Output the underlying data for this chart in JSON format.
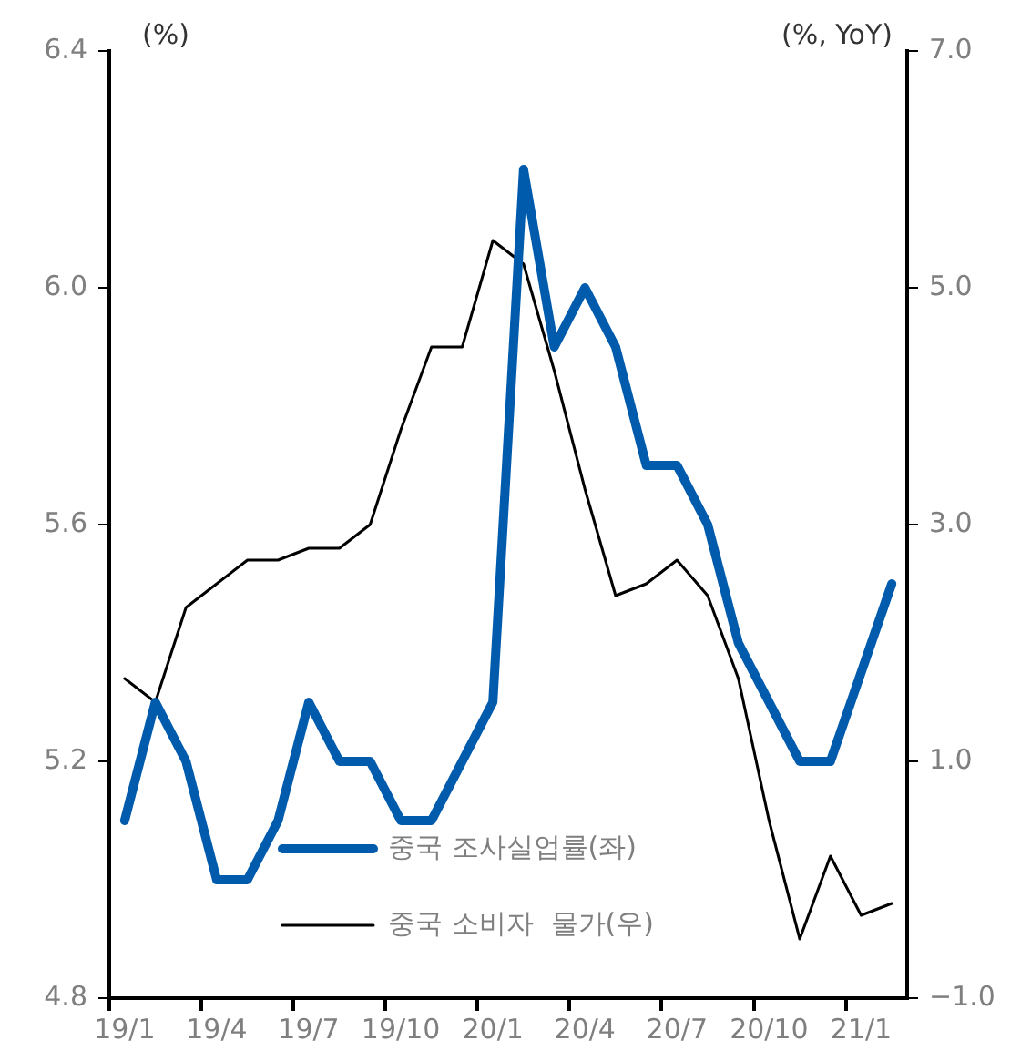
{
  "chart_data": {
    "type": "line",
    "ylabel": "(%)",
    "y2label": "(%, YoY)",
    "categories": [
      "19/1",
      null,
      null,
      "19/4",
      null,
      null,
      "19/7",
      null,
      null,
      "19/10",
      null,
      null,
      "20/1",
      null,
      null,
      "20/4",
      null,
      null,
      "20/7",
      null,
      null,
      "20/10",
      null,
      null,
      "21/1",
      null
    ],
    "series": [
      {
        "name": "중국 조사실업률(좌)",
        "color": "#005bac",
        "values": [
          5.1,
          5.3,
          5.2,
          5.0,
          5.0,
          5.1,
          5.3,
          5.2,
          5.2,
          5.1,
          5.1,
          5.2,
          5.3,
          6.2,
          5.9,
          6.0,
          5.9,
          5.7,
          5.7,
          5.6,
          5.4,
          5.3,
          5.2,
          5.2,
          null,
          5.5
        ]
      },
      {
        "name": "중국 소비자  물가(우)",
        "color": "#000000",
        "axis": "y2",
        "values": [
          1.7,
          1.5,
          2.3,
          2.5,
          2.7,
          2.7,
          2.8,
          2.8,
          3.0,
          3.8,
          4.5,
          4.5,
          5.4,
          5.2,
          4.3,
          3.3,
          2.4,
          2.5,
          2.7,
          2.4,
          1.7,
          0.5,
          -0.5,
          0.2,
          -0.3,
          -0.2
        ]
      }
    ],
    "ylim": [
      4.8,
      6.4
    ],
    "yticks": [
      {
        "value": 4.8,
        "label": "4.8"
      },
      {
        "value": 5.2,
        "label": "5.2"
      },
      {
        "value": 5.6,
        "label": "5.6"
      },
      {
        "value": 6,
        "label": "6.0"
      },
      {
        "value": 6.4,
        "label": "6.4"
      }
    ],
    "y2lim": [
      -1,
      7
    ],
    "y2ticks": [
      {
        "value": -1,
        "label": "−1.0"
      },
      {
        "value": 1,
        "label": "1.0"
      },
      {
        "value": 3,
        "label": "3.0"
      },
      {
        "value": 5,
        "label": "5.0"
      },
      {
        "value": 7,
        "label": "7.0"
      }
    ],
    "grid": false,
    "legend": "bottom",
    "marker": "none",
    "line_style": "solid"
  }
}
